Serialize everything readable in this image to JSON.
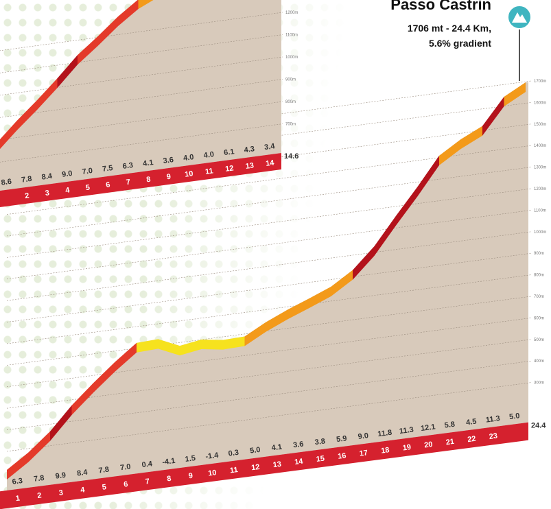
{
  "top_profile": {
    "gradients": [
      "8.6",
      "7.8",
      "8.4",
      "9.0",
      "7.0",
      "7.5",
      "6.3",
      "4.1",
      "3.6",
      "4.0",
      "4.0",
      "6.1",
      "4.3",
      "3.4"
    ],
    "km": [
      "2",
      "3",
      "4",
      "5",
      "6",
      "7",
      "8",
      "9",
      "10",
      "11",
      "12",
      "13",
      "14"
    ],
    "altitudes": [
      "1200m",
      "1100m",
      "1000m",
      "900m",
      "800m",
      "700m"
    ],
    "total": "14.6"
  },
  "main_profile": {
    "title": "Passo Castrin",
    "details": [
      "1706 mt - 24.4 Km,",
      "5.6% gradient"
    ],
    "gradients": [
      "6.3",
      "7.8",
      "9.9",
      "8.4",
      "7.8",
      "7.0",
      "0.4",
      "-4.1",
      "1.5",
      "-1.4",
      "0.3",
      "5.0",
      "4.1",
      "3.6",
      "3.8",
      "5.9",
      "9.0",
      "11.8",
      "11.3",
      "12.1",
      "5.8",
      "4.5",
      "11.3",
      "5.0"
    ],
    "km": [
      "1",
      "2",
      "3",
      "4",
      "5",
      "6",
      "7",
      "8",
      "9",
      "10",
      "11",
      "12",
      "13",
      "14",
      "15",
      "16",
      "17",
      "18",
      "19",
      "20",
      "21",
      "22",
      "23"
    ],
    "altitudes": [
      "1700m",
      "1600m",
      "1500m",
      "1400m",
      "1300m",
      "1200m",
      "1100m",
      "1000m",
      "900m",
      "800m",
      "700m",
      "600m",
      "500m",
      "400m",
      "300m"
    ],
    "total": "24.4"
  }
}
